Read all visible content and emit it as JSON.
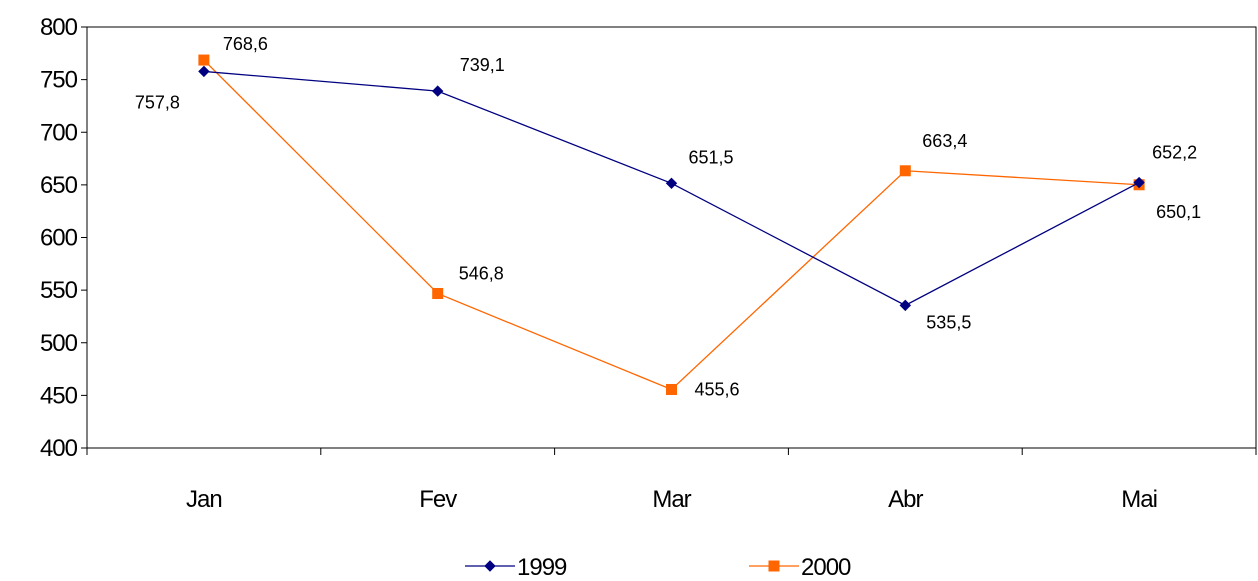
{
  "chart_data": {
    "type": "line",
    "categories": [
      "Jan",
      "Fev",
      "Mar",
      "Abr",
      "Mai"
    ],
    "series": [
      {
        "name": "1999",
        "values": [
          757.8,
          739.1,
          651.5,
          535.5,
          652.2
        ],
        "labels": [
          "757,8",
          "739,1",
          "651,5",
          "535,5",
          "652,2"
        ],
        "color": "#000080",
        "marker": "diamond"
      },
      {
        "name": "2000",
        "values": [
          768.6,
          546.8,
          455.6,
          663.4,
          650.1
        ],
        "labels": [
          "768,6",
          "546,8",
          "455,6",
          "663,4",
          "650,1"
        ],
        "color": "#FF6600",
        "marker": "square"
      }
    ],
    "ylim": [
      400,
      800
    ],
    "yticks": [
      400,
      450,
      500,
      550,
      600,
      650,
      700,
      750,
      800
    ],
    "grid": false,
    "legend_position": "bottom"
  }
}
